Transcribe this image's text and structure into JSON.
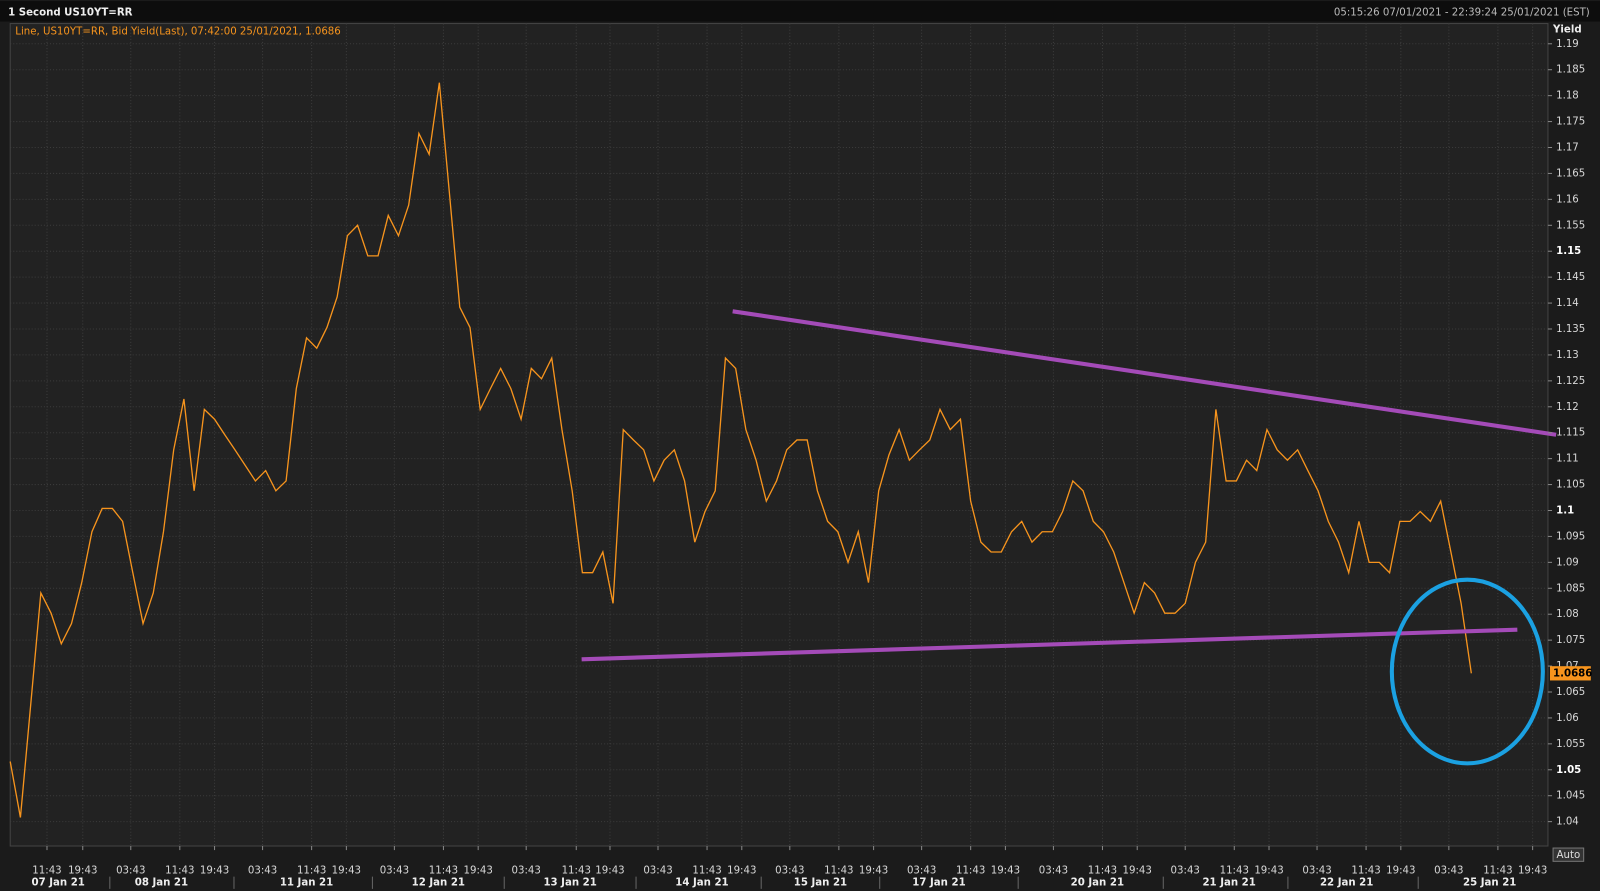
{
  "chart_data": {
    "type": "line",
    "title": "1 Second US10YT=RR",
    "subtitle": "05:15:26 07/01/2021 - 22:39:24 25/01/2021 (EST)",
    "legend_text": "Line, US10YT=RR, Bid Yield(Last), 07:42:00 25/01/2021, 1.0686",
    "y_label": "Yield",
    "button": "Auto",
    "grid": true,
    "series": [
      {
        "name": "US10YT=RR",
        "color": "#f7941d",
        "values": [
          1.0516,
          1.0408,
          1.0624,
          1.0841,
          1.0802,
          1.0743,
          1.0782,
          1.0861,
          1.0959,
          1.1004,
          1.1004,
          1.0979,
          1.088,
          1.0782,
          1.0841,
          1.0959,
          1.1117,
          1.1215,
          1.1038,
          1.1195,
          1.1176,
          1.1146,
          1.1117,
          1.1087,
          1.1057,
          1.1077,
          1.1038,
          1.1057,
          1.1235,
          1.1333,
          1.1313,
          1.1353,
          1.1412,
          1.153,
          1.155,
          1.1491,
          1.1491,
          1.1569,
          1.153,
          1.1589,
          1.1727,
          1.1687,
          1.1825,
          1.1609,
          1.1392,
          1.1353,
          1.1195,
          1.1235,
          1.1274,
          1.1235,
          1.1176,
          1.1274,
          1.1254,
          1.1294,
          1.1156,
          1.1038,
          1.088,
          1.088,
          1.092,
          1.0821,
          1.1156,
          1.1136,
          1.1117,
          1.1057,
          1.1097,
          1.1117,
          1.1057,
          1.0939,
          1.0998,
          1.1038,
          1.1294,
          1.1274,
          1.1156,
          1.1097,
          1.1018,
          1.1057,
          1.1117,
          1.1136,
          1.1136,
          1.1038,
          1.0979,
          1.0959,
          1.09,
          1.0959,
          1.0861,
          1.1038,
          1.1107,
          1.1156,
          1.1097,
          1.1117,
          1.1136,
          1.1195,
          1.1156,
          1.1176,
          1.1018,
          1.0939,
          1.092,
          1.092,
          1.0959,
          1.0979,
          1.0939,
          1.0959,
          1.0959,
          1.0998,
          1.1057,
          1.1038,
          1.0979,
          1.0959,
          1.092,
          1.0861,
          1.0802,
          1.0861,
          1.0841,
          1.0802,
          1.0802,
          1.0821,
          1.09,
          1.0939,
          1.1195,
          1.1057,
          1.1057,
          1.1097,
          1.1077,
          1.1156,
          1.1117,
          1.1097,
          1.1117,
          1.1077,
          1.1038,
          1.0979,
          1.0939,
          1.088,
          1.0979,
          1.09,
          1.09,
          1.088,
          1.0979,
          1.0979,
          1.0998,
          1.0979,
          1.1018,
          1.092,
          1.0821,
          1.0686
        ]
      }
    ],
    "xlim": [
      0,
      150.5
    ],
    "xticks": [
      {
        "value": 3.6,
        "label": "11:43"
      },
      {
        "value": 7.1,
        "label": "19:43"
      },
      {
        "value": 11.8,
        "label": "03:43"
      },
      {
        "value": 16.6,
        "label": "11:43"
      },
      {
        "value": 20.0,
        "label": "19:43"
      },
      {
        "value": 24.7,
        "label": "03:43"
      },
      {
        "value": 29.5,
        "label": "11:43"
      },
      {
        "value": 32.9,
        "label": "19:43"
      },
      {
        "value": 37.6,
        "label": "03:43"
      },
      {
        "value": 42.4,
        "label": "11:43"
      },
      {
        "value": 45.8,
        "label": "19:43"
      },
      {
        "value": 50.5,
        "label": "03:43"
      },
      {
        "value": 55.4,
        "label": "11:43"
      },
      {
        "value": 58.7,
        "label": "19:43"
      },
      {
        "value": 63.4,
        "label": "03:43"
      },
      {
        "value": 68.2,
        "label": "11:43"
      },
      {
        "value": 71.6,
        "label": "19:43"
      },
      {
        "value": 76.3,
        "label": "03:43"
      },
      {
        "value": 81.1,
        "label": "11:43"
      },
      {
        "value": 84.5,
        "label": "19:43"
      },
      {
        "value": 89.2,
        "label": "03:43"
      },
      {
        "value": 94.0,
        "label": "11:43"
      },
      {
        "value": 97.4,
        "label": "19:43"
      },
      {
        "value": 102.1,
        "label": "03:43"
      },
      {
        "value": 106.9,
        "label": "11:43"
      },
      {
        "value": 110.3,
        "label": "19:43"
      },
      {
        "value": 115.0,
        "label": "03:43"
      },
      {
        "value": 119.8,
        "label": "11:43"
      },
      {
        "value": 123.2,
        "label": "19:43"
      },
      {
        "value": 127.9,
        "label": "03:43"
      },
      {
        "value": 132.7,
        "label": "11:43"
      },
      {
        "value": 136.1,
        "label": "19:43"
      },
      {
        "value": 140.8,
        "label": "03:43"
      },
      {
        "value": 145.6,
        "label": "11:43"
      },
      {
        "value": 149.0,
        "label": "19:43"
      }
    ],
    "date_ticks": [
      {
        "value": 4.7,
        "label": "07 Jan 21"
      },
      {
        "value": 14.8,
        "label": "08 Jan 21"
      },
      {
        "value": 29.0,
        "label": "11 Jan 21"
      },
      {
        "value": 41.9,
        "label": "12 Jan 21"
      },
      {
        "value": 54.8,
        "label": "13 Jan 21"
      },
      {
        "value": 67.7,
        "label": "14 Jan 21"
      },
      {
        "value": 79.3,
        "label": "15 Jan 21"
      },
      {
        "value": 90.9,
        "label": "17 Jan 21"
      },
      {
        "value": 106.4,
        "label": "20 Jan 21"
      },
      {
        "value": 119.3,
        "label": "21 Jan 21"
      },
      {
        "value": 130.8,
        "label": "22 Jan 21"
      },
      {
        "value": 144.8,
        "label": "25 Jan 21"
      }
    ],
    "ylim": [
      1.0353,
      1.1939
    ],
    "yticks": [
      1.04,
      1.045,
      1.05,
      1.055,
      1.06,
      1.065,
      1.07,
      1.075,
      1.08,
      1.085,
      1.09,
      1.095,
      1.1,
      1.105,
      1.11,
      1.115,
      1.12,
      1.125,
      1.13,
      1.135,
      1.14,
      1.145,
      1.15,
      1.155,
      1.16,
      1.165,
      1.17,
      1.175,
      1.18,
      1.185,
      1.19
    ]
  }
}
